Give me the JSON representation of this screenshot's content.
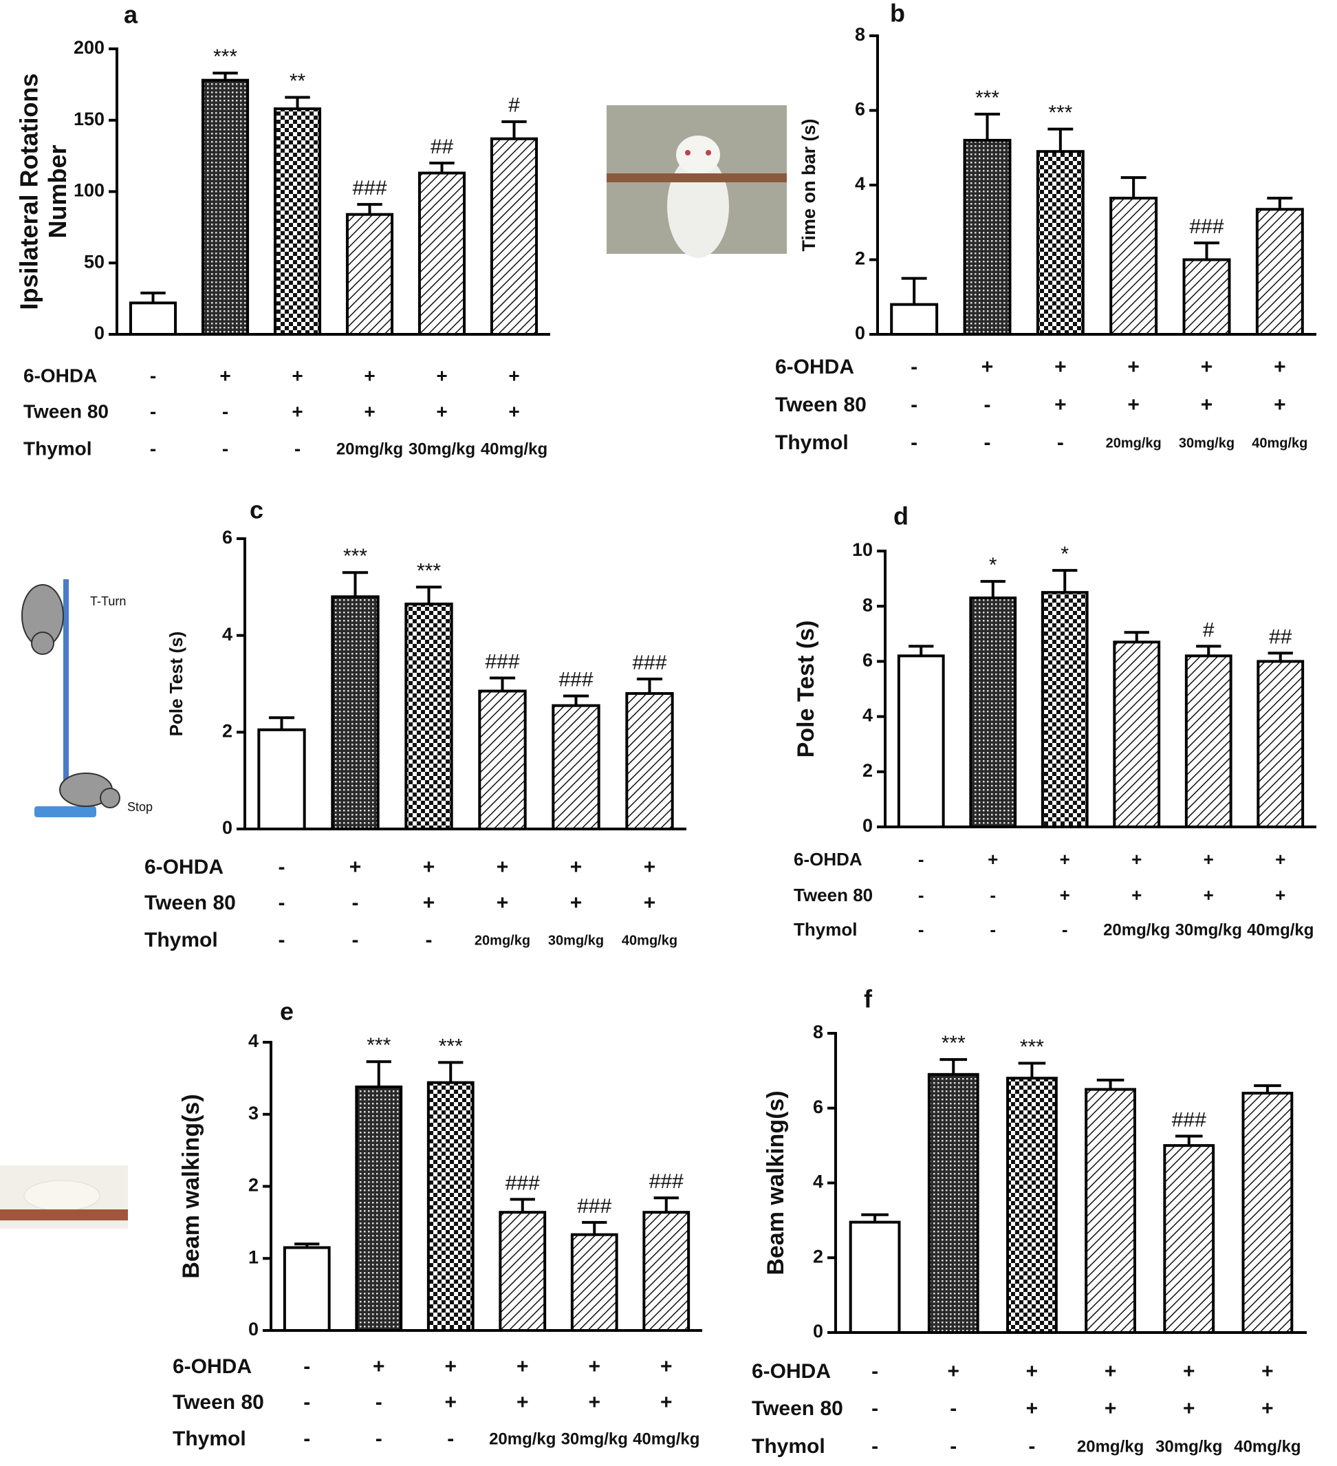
{
  "chart_data": [
    {
      "type": "bar",
      "label": "a",
      "y_label": [
        "Ipsilateral Rotations",
        "Number"
      ],
      "values": [
        22,
        178,
        158,
        84,
        113,
        137
      ],
      "errors": [
        7,
        5,
        8,
        7,
        7,
        12
      ],
      "annotations": [
        null,
        "***",
        "**",
        "###",
        "##",
        "#"
      ],
      "patterns": [
        "none",
        "crosshatch",
        "checker",
        "hatch",
        "hatch",
        "hatch"
      ],
      "ylim": [
        0,
        200
      ],
      "yticks": [
        0,
        50,
        100,
        150,
        200
      ],
      "conditions": [
        {
          "name": "6-OHDA",
          "values": [
            "-",
            "+",
            "+",
            "+",
            "+",
            "+"
          ]
        },
        {
          "name": "Tween 80",
          "values": [
            "-",
            "-",
            "+",
            "+",
            "+",
            "+"
          ]
        },
        {
          "name": "Thymol",
          "values": [
            "-",
            "-",
            "-",
            "20mg/kg",
            "30mg/kg",
            "40mg/kg"
          ]
        }
      ]
    },
    {
      "type": "bar",
      "label": "b",
      "y_label": [
        "Time on bar (s)"
      ],
      "values": [
        0.8,
        5.2,
        4.9,
        3.65,
        2.0,
        3.35
      ],
      "errors": [
        0.7,
        0.7,
        0.6,
        0.55,
        0.45,
        0.3
      ],
      "annotations": [
        null,
        "***",
        "***",
        null,
        "###",
        null
      ],
      "patterns": [
        "none",
        "crosshatch",
        "checker",
        "hatch",
        "hatch",
        "hatch"
      ],
      "ylim": [
        0,
        8
      ],
      "yticks": [
        0,
        2,
        4,
        6,
        8
      ],
      "conditions": [
        {
          "name": "6-OHDA",
          "values": [
            "-",
            "+",
            "+",
            "+",
            "+",
            "+"
          ]
        },
        {
          "name": "Tween 80",
          "values": [
            "-",
            "-",
            "+",
            "+",
            "+",
            "+"
          ]
        },
        {
          "name": "Thymol",
          "values": [
            "-",
            "-",
            "-",
            "20mg/kg",
            "30mg/kg",
            "40mg/kg"
          ]
        }
      ]
    },
    {
      "type": "bar",
      "label": "c",
      "y_label": [
        "Pole Test (s)"
      ],
      "values": [
        2.05,
        4.8,
        4.65,
        2.85,
        2.55,
        2.8
      ],
      "errors": [
        0.25,
        0.5,
        0.35,
        0.27,
        0.2,
        0.3
      ],
      "annotations": [
        null,
        "***",
        "***",
        "###",
        "###",
        "###"
      ],
      "patterns": [
        "none",
        "crosshatch",
        "checker",
        "hatch",
        "hatch",
        "hatch"
      ],
      "ylim": [
        0,
        6
      ],
      "yticks": [
        0,
        2,
        4,
        6
      ],
      "conditions": [
        {
          "name": "6-OHDA",
          "values": [
            "-",
            "+",
            "+",
            "+",
            "+",
            "+"
          ]
        },
        {
          "name": "Tween 80",
          "values": [
            "-",
            "-",
            "+",
            "+",
            "+",
            "+"
          ]
        },
        {
          "name": "Thymol",
          "values": [
            "-",
            "-",
            "-",
            "20mg/kg",
            "30mg/kg",
            "40mg/kg"
          ]
        }
      ]
    },
    {
      "type": "bar",
      "label": "d",
      "y_label": [
        "Pole Test (s)"
      ],
      "values": [
        6.2,
        8.3,
        8.5,
        6.7,
        6.2,
        6.0
      ],
      "errors": [
        0.35,
        0.6,
        0.8,
        0.35,
        0.35,
        0.3
      ],
      "annotations": [
        null,
        "*",
        "*",
        null,
        "#",
        "##"
      ],
      "patterns": [
        "none",
        "crosshatch",
        "checker",
        "hatch",
        "hatch",
        "hatch"
      ],
      "ylim": [
        0,
        10
      ],
      "yticks": [
        0,
        2,
        4,
        6,
        8,
        10
      ],
      "conditions": [
        {
          "name": "6-OHDA",
          "values": [
            "-",
            "+",
            "+",
            "+",
            "+",
            "+"
          ]
        },
        {
          "name": "Tween 80",
          "values": [
            "-",
            "-",
            "+",
            "+",
            "+",
            "+"
          ]
        },
        {
          "name": "Thymol",
          "values": [
            "-",
            "-",
            "-",
            "20mg/kg",
            "30mg/kg",
            "40mg/kg"
          ]
        }
      ]
    },
    {
      "type": "bar",
      "label": "e",
      "y_label": [
        "Beam walking(s)"
      ],
      "values": [
        1.15,
        3.38,
        3.44,
        1.64,
        1.33,
        1.64
      ],
      "errors": [
        0.05,
        0.35,
        0.28,
        0.18,
        0.17,
        0.2
      ],
      "annotations": [
        null,
        "***",
        "***",
        "###",
        "###",
        "###"
      ],
      "patterns": [
        "none",
        "crosshatch",
        "checker",
        "hatch",
        "hatch",
        "hatch"
      ],
      "ylim": [
        0,
        4
      ],
      "yticks": [
        0,
        1,
        2,
        3,
        4
      ],
      "conditions": [
        {
          "name": "6-OHDA",
          "values": [
            "-",
            "+",
            "+",
            "+",
            "+",
            "+"
          ]
        },
        {
          "name": "Tween 80",
          "values": [
            "-",
            "-",
            "+",
            "+",
            "+",
            "+"
          ]
        },
        {
          "name": "Thymol",
          "values": [
            "-",
            "-",
            "-",
            "20mg/kg",
            "30mg/kg",
            "40mg/kg"
          ]
        }
      ]
    },
    {
      "type": "bar",
      "label": "f",
      "y_label": [
        "Beam walking(s)"
      ],
      "values": [
        2.95,
        6.9,
        6.8,
        6.5,
        5.0,
        6.4
      ],
      "errors": [
        0.2,
        0.4,
        0.4,
        0.25,
        0.25,
        0.2
      ],
      "annotations": [
        null,
        "***",
        "***",
        null,
        "###",
        null
      ],
      "patterns": [
        "none",
        "crosshatch",
        "checker",
        "hatch",
        "hatch",
        "hatch"
      ],
      "ylim": [
        0,
        8
      ],
      "yticks": [
        0,
        2,
        4,
        6,
        8
      ],
      "conditions": [
        {
          "name": "6-OHDA",
          "values": [
            "-",
            "+",
            "+",
            "+",
            "+",
            "+"
          ]
        },
        {
          "name": "Tween 80",
          "values": [
            "-",
            "-",
            "+",
            "+",
            "+",
            "+"
          ]
        },
        {
          "name": "Thymol",
          "values": [
            "-",
            "-",
            "-",
            "20mg/kg",
            "30mg/kg",
            "40mg/kg"
          ]
        }
      ]
    }
  ],
  "illustration": {
    "top_label": "T-Turn",
    "bottom_label": "Stop"
  }
}
